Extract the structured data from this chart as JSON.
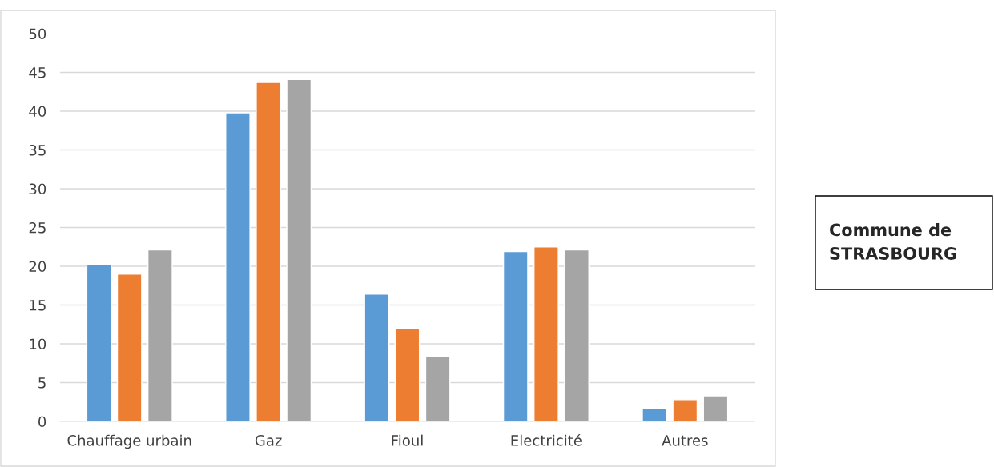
{
  "chart_data": {
    "type": "bar",
    "categories": [
      "Chauffage urbain",
      "Gaz",
      "Fioul",
      "Electricité",
      "Autres"
    ],
    "series": [
      {
        "color": "#5b9bd5",
        "values": [
          20.2,
          39.8,
          16.4,
          21.9,
          1.7
        ]
      },
      {
        "color": "#ed7d31",
        "values": [
          19.0,
          43.7,
          12.0,
          22.5,
          2.8
        ]
      },
      {
        "color": "#a5a5a5",
        "values": [
          22.1,
          44.1,
          8.4,
          22.1,
          3.3
        ]
      }
    ],
    "ylim": [
      0,
      50
    ],
    "yticks": [
      0,
      5,
      10,
      15,
      20,
      25,
      30,
      35,
      40,
      45,
      50
    ],
    "grid": "y",
    "legend": false,
    "annotations": [
      "Commune de\nSTRASBOURG"
    ]
  }
}
